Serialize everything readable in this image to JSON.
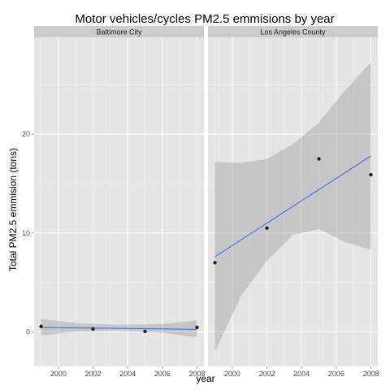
{
  "chart_data": {
    "type": "scatter",
    "title": "Motor vehicles/cycles PM2.5 emmisions by year",
    "xlabel": "year",
    "ylabel": "Total PM2.5 emmision (tons)",
    "xlim": [
      1998.6,
      2008.4
    ],
    "ylim": [
      -3.5,
      29.8
    ],
    "x_ticks": [
      2000,
      2002,
      2004,
      2006,
      2008
    ],
    "y_ticks": [
      0,
      10,
      20
    ],
    "x_tick_labels": [
      "2000",
      "2002",
      "2004",
      "2006",
      "2008"
    ],
    "y_tick_labels": [
      "0",
      "10",
      "20"
    ],
    "grid": true,
    "colors": {
      "panel_bg": "#e5e5e5",
      "strip_bg": "#cccccc",
      "grid_major": "#ffffff",
      "point": "#222222",
      "trend_line": "#3366ff",
      "confidence_band": "#999999"
    },
    "panels": [
      {
        "name": "Baltimore City",
        "x": [
          1999,
          2002,
          2005,
          2008
        ],
        "y": [
          0.55,
          0.3,
          0.05,
          0.45
        ],
        "trend": {
          "x": [
            1999,
            2008
          ],
          "y": [
            0.45,
            0.25
          ]
        },
        "band": {
          "x": [
            1999,
            2001,
            2003.5,
            2006,
            2008
          ],
          "lower": [
            -0.35,
            0.0,
            0.1,
            -0.1,
            -0.55
          ],
          "upper": [
            1.3,
            0.9,
            0.7,
            0.8,
            1.15
          ]
        }
      },
      {
        "name": "Los Angeles County",
        "x": [
          1999,
          2002,
          2005,
          2008
        ],
        "y": [
          7.0,
          10.5,
          17.5,
          15.9
        ],
        "trend": {
          "x": [
            1999,
            2008
          ],
          "y": [
            7.6,
            17.8
          ]
        },
        "band": {
          "x": [
            1999,
            2000.5,
            2002,
            2003.5,
            2005,
            2006.5,
            2008
          ],
          "lower": [
            -2.0,
            3.6,
            7.2,
            9.8,
            10.4,
            9.1,
            8.3
          ],
          "upper": [
            17.2,
            17.1,
            17.5,
            19.0,
            21.2,
            24.4,
            27.3
          ]
        }
      }
    ]
  }
}
